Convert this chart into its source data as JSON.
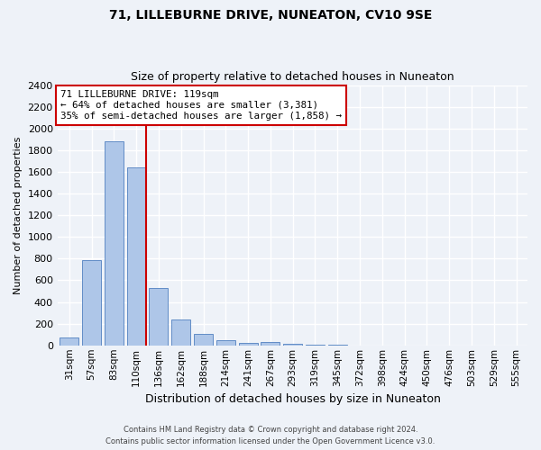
{
  "title": "71, LILLEBURNE DRIVE, NUNEATON, CV10 9SE",
  "subtitle": "Size of property relative to detached houses in Nuneaton",
  "xlabel": "Distribution of detached houses by size in Nuneaton",
  "ylabel": "Number of detached properties",
  "bar_labels": [
    "31sqm",
    "57sqm",
    "83sqm",
    "110sqm",
    "136sqm",
    "162sqm",
    "188sqm",
    "214sqm",
    "241sqm",
    "267sqm",
    "293sqm",
    "319sqm",
    "345sqm",
    "372sqm",
    "398sqm",
    "424sqm",
    "450sqm",
    "476sqm",
    "503sqm",
    "529sqm",
    "555sqm"
  ],
  "bar_values": [
    75,
    790,
    1880,
    1640,
    530,
    240,
    105,
    50,
    25,
    30,
    15,
    5,
    3,
    2,
    1,
    0,
    0,
    0,
    0,
    0,
    0
  ],
  "bar_color": "#aec6e8",
  "bar_edge_color": "#5080c0",
  "property_line_color": "#cc0000",
  "property_line_x": 3.42,
  "annotation_text_line1": "71 LILLEBURNE DRIVE: 119sqm",
  "annotation_text_line2": "← 64% of detached houses are smaller (3,381)",
  "annotation_text_line3": "35% of semi-detached houses are larger (1,858) →",
  "annotation_box_facecolor": "#ffffff",
  "annotation_box_edgecolor": "#cc0000",
  "ylim": [
    0,
    2400
  ],
  "yticks": [
    0,
    200,
    400,
    600,
    800,
    1000,
    1200,
    1400,
    1600,
    1800,
    2000,
    2200,
    2400
  ],
  "footer1": "Contains HM Land Registry data © Crown copyright and database right 2024.",
  "footer2": "Contains public sector information licensed under the Open Government Licence v3.0.",
  "bg_color": "#eef2f8",
  "grid_color": "#ffffff",
  "title_fontsize": 10,
  "subtitle_fontsize": 9,
  "ylabel_fontsize": 8,
  "xlabel_fontsize": 9,
  "ytick_fontsize": 8,
  "xtick_fontsize": 7.5
}
